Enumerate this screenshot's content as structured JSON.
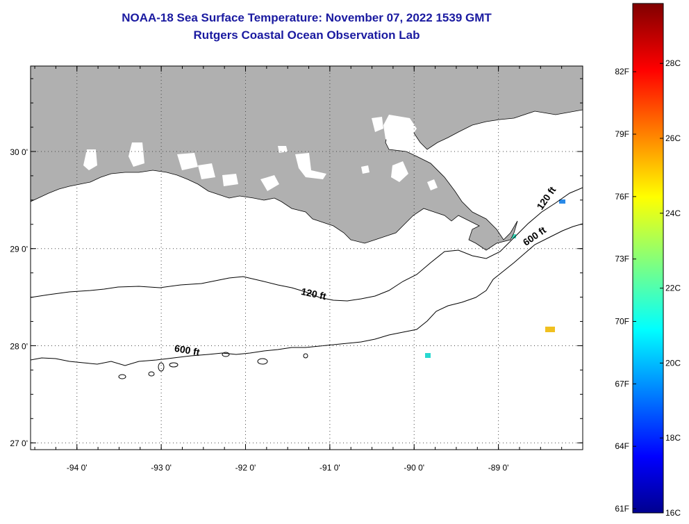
{
  "header": {
    "title": "NOAA-18 Sea Surface Temperature:  November 07, 2022 1539 GMT",
    "subtitle": "Rutgers Coastal Ocean Observation Lab"
  },
  "map": {
    "lon_range": [
      -94.55,
      -88.0
    ],
    "lat_range": [
      26.93,
      30.88
    ],
    "lon_ticks": [
      {
        "value": -94,
        "label": "-94 0'"
      },
      {
        "value": -93,
        "label": "-93 0'"
      },
      {
        "value": -92,
        "label": "-92 0'"
      },
      {
        "value": -91,
        "label": "-91 0'"
      },
      {
        "value": -90,
        "label": "-90 0'"
      },
      {
        "value": -89,
        "label": "-89 0'"
      }
    ],
    "lat_ticks": [
      {
        "value": 30,
        "label": "30 0'"
      },
      {
        "value": 29,
        "label": "29 0'"
      },
      {
        "value": 28,
        "label": "28 0'"
      },
      {
        "value": 27,
        "label": "27 0'"
      }
    ],
    "grid": "dotted",
    "colors": {
      "land": "#b0b0b0",
      "ocean_nodata": "#ffffff",
      "contour": "#000000"
    },
    "contour_labels": [
      {
        "text": "120 ft",
        "lon": -91.2,
        "lat": 28.5,
        "rotation": 12
      },
      {
        "text": "600 ft",
        "lon": -92.7,
        "lat": 27.92,
        "rotation": 10
      },
      {
        "text": "120 ft",
        "lon": -88.4,
        "lat": 29.5,
        "rotation": -55
      },
      {
        "text": "600 ft",
        "lon": -88.55,
        "lat": 29.1,
        "rotation": -35
      }
    ]
  },
  "colorbar": {
    "fahrenheit_labels": [
      {
        "value": 82,
        "label": "82F"
      },
      {
        "value": 79,
        "label": "79F"
      },
      {
        "value": 76,
        "label": "76F"
      },
      {
        "value": 73,
        "label": "73F"
      },
      {
        "value": 70,
        "label": "70F"
      },
      {
        "value": 67,
        "label": "67F"
      },
      {
        "value": 64,
        "label": "64F"
      },
      {
        "value": 61,
        "label": "61F"
      }
    ],
    "celsius_labels": [
      {
        "value": 28,
        "label": "28C"
      },
      {
        "value": 26,
        "label": "26C"
      },
      {
        "value": 24,
        "label": "24C"
      },
      {
        "value": 22,
        "label": "22C"
      },
      {
        "value": 20,
        "label": "20C"
      },
      {
        "value": 18,
        "label": "18C"
      },
      {
        "value": 16,
        "label": "16C"
      }
    ],
    "min_c": 16,
    "max_c": 29.6,
    "colormap": "jet"
  }
}
